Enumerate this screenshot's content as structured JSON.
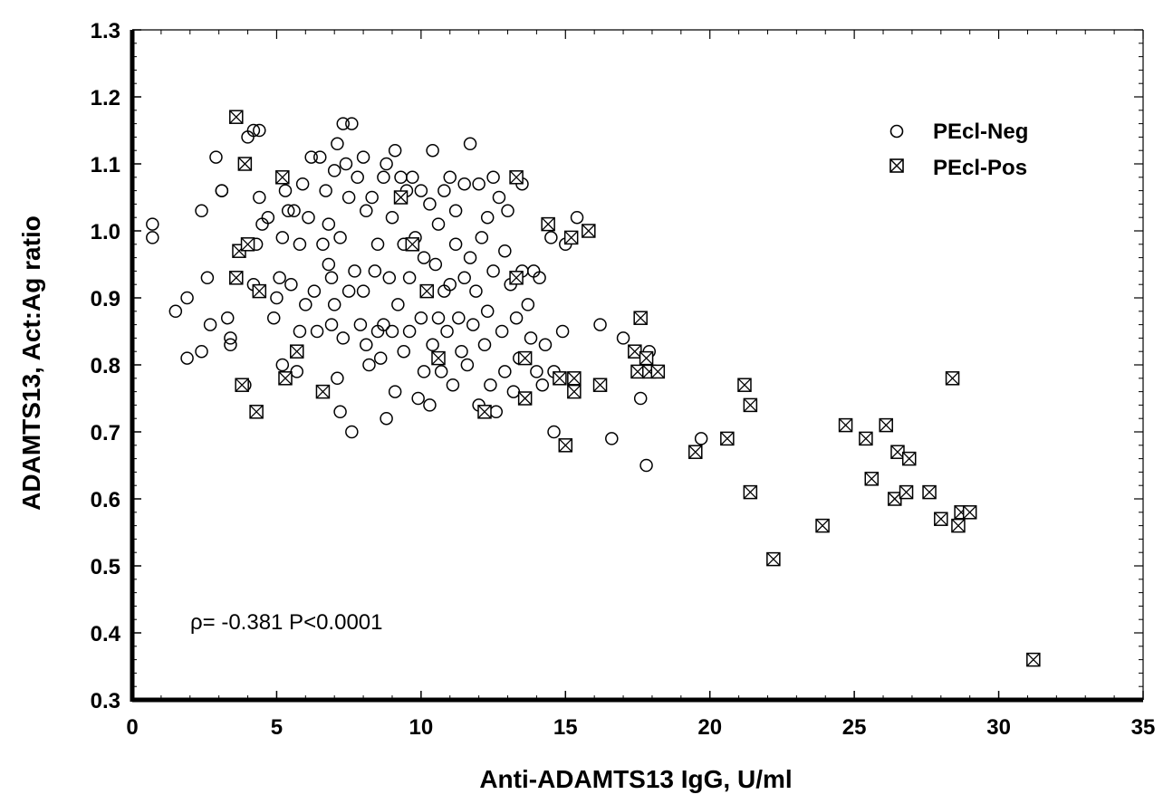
{
  "chart_data": {
    "type": "scatter",
    "xlabel": "Anti-ADAMTS13 IgG, U/ml",
    "ylabel": "ADAMTS13, Act:Ag ratio",
    "xlim": [
      0,
      35
    ],
    "ylim": [
      0.3,
      1.3
    ],
    "x_ticks": [
      0,
      5,
      10,
      15,
      20,
      25,
      30,
      35
    ],
    "x_tick_labels": [
      "0",
      "5",
      "10",
      "15",
      "20",
      "25",
      "30",
      "35"
    ],
    "y_ticks": [
      0.3,
      0.4,
      0.5,
      0.6,
      0.7,
      0.8,
      0.9,
      1.0,
      1.1,
      1.2,
      1.3
    ],
    "y_tick_labels": [
      "0.3",
      "0.4",
      "0.5",
      "0.6",
      "0.7",
      "0.8",
      "0.9",
      "1.0",
      "1.1",
      "1.2",
      "1.3"
    ],
    "grid": false,
    "legend_position": "top-right",
    "annotation": "ρ= -0.381  P<0.0001",
    "series": [
      {
        "name": "PEcl-Neg",
        "marker": "circle",
        "points": [
          [
            0.7,
            1.01
          ],
          [
            0.7,
            0.99
          ],
          [
            1.5,
            0.88
          ],
          [
            1.9,
            0.9
          ],
          [
            1.9,
            0.81
          ],
          [
            2.4,
            1.03
          ],
          [
            2.4,
            0.82
          ],
          [
            2.6,
            0.93
          ],
          [
            2.7,
            0.86
          ],
          [
            2.9,
            1.11
          ],
          [
            3.1,
            1.06
          ],
          [
            3.1,
            1.06
          ],
          [
            3.3,
            0.87
          ],
          [
            3.4,
            0.84
          ],
          [
            3.4,
            0.83
          ],
          [
            3.9,
            0.77
          ],
          [
            4.0,
            1.14
          ],
          [
            4.2,
            1.15
          ],
          [
            4.2,
            0.92
          ],
          [
            4.3,
            0.98
          ],
          [
            4.4,
            1.15
          ],
          [
            4.4,
            1.05
          ],
          [
            4.5,
            1.01
          ],
          [
            4.7,
            1.02
          ],
          [
            4.9,
            0.87
          ],
          [
            5.0,
            0.9
          ],
          [
            5.1,
            0.93
          ],
          [
            5.2,
            0.99
          ],
          [
            5.2,
            0.8
          ],
          [
            5.3,
            1.06
          ],
          [
            5.4,
            1.03
          ],
          [
            5.5,
            0.92
          ],
          [
            5.6,
            1.03
          ],
          [
            5.7,
            0.79
          ],
          [
            5.8,
            0.98
          ],
          [
            5.8,
            0.85
          ],
          [
            5.9,
            1.07
          ],
          [
            6.0,
            0.89
          ],
          [
            6.1,
            1.02
          ],
          [
            6.2,
            1.11
          ],
          [
            6.3,
            0.91
          ],
          [
            6.4,
            0.85
          ],
          [
            6.5,
            1.11
          ],
          [
            6.6,
            0.98
          ],
          [
            6.7,
            1.06
          ],
          [
            6.8,
            0.95
          ],
          [
            6.8,
            1.01
          ],
          [
            6.9,
            0.93
          ],
          [
            6.9,
            0.86
          ],
          [
            7.0,
            0.89
          ],
          [
            7.0,
            1.09
          ],
          [
            7.1,
            1.13
          ],
          [
            7.1,
            0.78
          ],
          [
            7.2,
            0.99
          ],
          [
            7.2,
            0.73
          ],
          [
            7.3,
            1.16
          ],
          [
            7.3,
            0.84
          ],
          [
            7.4,
            1.1
          ],
          [
            7.5,
            1.05
          ],
          [
            7.5,
            0.91
          ],
          [
            7.6,
            1.16
          ],
          [
            7.6,
            0.7
          ],
          [
            7.7,
            0.94
          ],
          [
            7.8,
            1.08
          ],
          [
            7.9,
            0.86
          ],
          [
            8.0,
            1.11
          ],
          [
            8.0,
            0.91
          ],
          [
            8.1,
            0.83
          ],
          [
            8.1,
            1.03
          ],
          [
            8.2,
            0.8
          ],
          [
            8.3,
            1.05
          ],
          [
            8.4,
            0.94
          ],
          [
            8.5,
            0.85
          ],
          [
            8.5,
            0.98
          ],
          [
            8.6,
            0.81
          ],
          [
            8.7,
            1.08
          ],
          [
            8.7,
            0.86
          ],
          [
            8.8,
            1.1
          ],
          [
            8.8,
            0.72
          ],
          [
            8.9,
            0.93
          ],
          [
            9.0,
            0.85
          ],
          [
            9.0,
            1.02
          ],
          [
            9.1,
            0.76
          ],
          [
            9.1,
            1.12
          ],
          [
            9.2,
            0.89
          ],
          [
            9.3,
            1.08
          ],
          [
            9.4,
            0.82
          ],
          [
            9.4,
            0.98
          ],
          [
            9.5,
            1.06
          ],
          [
            9.6,
            0.93
          ],
          [
            9.6,
            0.85
          ],
          [
            9.7,
            1.08
          ],
          [
            9.8,
            0.99
          ],
          [
            9.9,
            0.75
          ],
          [
            10.0,
            0.87
          ],
          [
            10.0,
            1.06
          ],
          [
            10.1,
            0.79
          ],
          [
            10.1,
            0.96
          ],
          [
            10.2,
            0.91
          ],
          [
            10.3,
            1.04
          ],
          [
            10.3,
            0.74
          ],
          [
            10.4,
            1.12
          ],
          [
            10.4,
            0.83
          ],
          [
            10.5,
            0.95
          ],
          [
            10.6,
            0.87
          ],
          [
            10.6,
            1.01
          ],
          [
            10.7,
            0.79
          ],
          [
            10.8,
            0.91
          ],
          [
            10.8,
            1.06
          ],
          [
            10.9,
            0.85
          ],
          [
            11.0,
            1.08
          ],
          [
            11.0,
            0.92
          ],
          [
            11.1,
            0.77
          ],
          [
            11.2,
            0.98
          ],
          [
            11.2,
            1.03
          ],
          [
            11.3,
            0.87
          ],
          [
            11.4,
            0.82
          ],
          [
            11.5,
            0.93
          ],
          [
            11.5,
            1.07
          ],
          [
            11.6,
            0.8
          ],
          [
            11.7,
            0.96
          ],
          [
            11.7,
            1.13
          ],
          [
            11.8,
            0.86
          ],
          [
            11.9,
            0.91
          ],
          [
            12.0,
            1.07
          ],
          [
            12.0,
            0.74
          ],
          [
            12.1,
            0.99
          ],
          [
            12.2,
            0.83
          ],
          [
            12.3,
            1.02
          ],
          [
            12.3,
            0.88
          ],
          [
            12.4,
            0.77
          ],
          [
            12.5,
            1.08
          ],
          [
            12.5,
            0.94
          ],
          [
            12.6,
            0.73
          ],
          [
            12.7,
            1.05
          ],
          [
            12.8,
            0.85
          ],
          [
            12.9,
            0.79
          ],
          [
            12.9,
            0.97
          ],
          [
            13.0,
            1.03
          ],
          [
            13.1,
            0.92
          ],
          [
            13.2,
            0.76
          ],
          [
            13.3,
            1.08
          ],
          [
            13.3,
            0.87
          ],
          [
            13.4,
            0.81
          ],
          [
            13.5,
            1.07
          ],
          [
            13.5,
            0.94
          ],
          [
            13.6,
            0.75
          ],
          [
            13.7,
            0.89
          ],
          [
            13.8,
            0.84
          ],
          [
            13.9,
            0.94
          ],
          [
            14.0,
            0.79
          ],
          [
            14.1,
            0.93
          ],
          [
            14.2,
            0.77
          ],
          [
            14.3,
            0.83
          ],
          [
            14.5,
            0.99
          ],
          [
            14.6,
            0.79
          ],
          [
            14.6,
            0.7
          ],
          [
            14.9,
            0.85
          ],
          [
            15.0,
            0.98
          ],
          [
            15.4,
            1.02
          ],
          [
            16.2,
            0.86
          ],
          [
            16.6,
            0.69
          ],
          [
            17.0,
            0.84
          ],
          [
            17.6,
            0.75
          ],
          [
            17.8,
            0.65
          ],
          [
            17.9,
            0.82
          ],
          [
            19.7,
            0.69
          ]
        ]
      },
      {
        "name": "PEcl-Pos",
        "marker": "square-x",
        "points": [
          [
            3.6,
            1.17
          ],
          [
            3.6,
            0.93
          ],
          [
            3.7,
            0.97
          ],
          [
            3.8,
            0.77
          ],
          [
            3.9,
            1.1
          ],
          [
            4.0,
            0.98
          ],
          [
            4.3,
            0.73
          ],
          [
            4.4,
            0.91
          ],
          [
            5.2,
            1.08
          ],
          [
            5.3,
            0.78
          ],
          [
            5.7,
            0.82
          ],
          [
            6.6,
            0.76
          ],
          [
            9.3,
            1.05
          ],
          [
            9.7,
            0.98
          ],
          [
            10.2,
            0.91
          ],
          [
            10.6,
            0.81
          ],
          [
            12.2,
            0.73
          ],
          [
            13.3,
            0.93
          ],
          [
            13.3,
            1.08
          ],
          [
            13.6,
            0.75
          ],
          [
            13.6,
            0.81
          ],
          [
            14.4,
            1.01
          ],
          [
            14.8,
            0.78
          ],
          [
            15.0,
            0.68
          ],
          [
            15.2,
            0.99
          ],
          [
            15.3,
            0.76
          ],
          [
            15.3,
            0.78
          ],
          [
            15.8,
            1.0
          ],
          [
            16.2,
            0.77
          ],
          [
            17.4,
            0.82
          ],
          [
            17.5,
            0.79
          ],
          [
            17.6,
            0.87
          ],
          [
            17.8,
            0.81
          ],
          [
            17.9,
            0.79
          ],
          [
            18.2,
            0.79
          ],
          [
            19.5,
            0.67
          ],
          [
            20.6,
            0.69
          ],
          [
            21.2,
            0.77
          ],
          [
            21.4,
            0.74
          ],
          [
            21.4,
            0.61
          ],
          [
            22.2,
            0.51
          ],
          [
            23.9,
            0.56
          ],
          [
            24.7,
            0.71
          ],
          [
            25.4,
            0.69
          ],
          [
            25.6,
            0.63
          ],
          [
            26.1,
            0.71
          ],
          [
            26.4,
            0.6
          ],
          [
            26.5,
            0.67
          ],
          [
            26.8,
            0.61
          ],
          [
            26.9,
            0.66
          ],
          [
            27.6,
            0.61
          ],
          [
            28.0,
            0.57
          ],
          [
            28.4,
            0.78
          ],
          [
            28.6,
            0.56
          ],
          [
            28.7,
            0.58
          ],
          [
            29.0,
            0.58
          ],
          [
            31.2,
            0.36
          ]
        ]
      }
    ]
  }
}
